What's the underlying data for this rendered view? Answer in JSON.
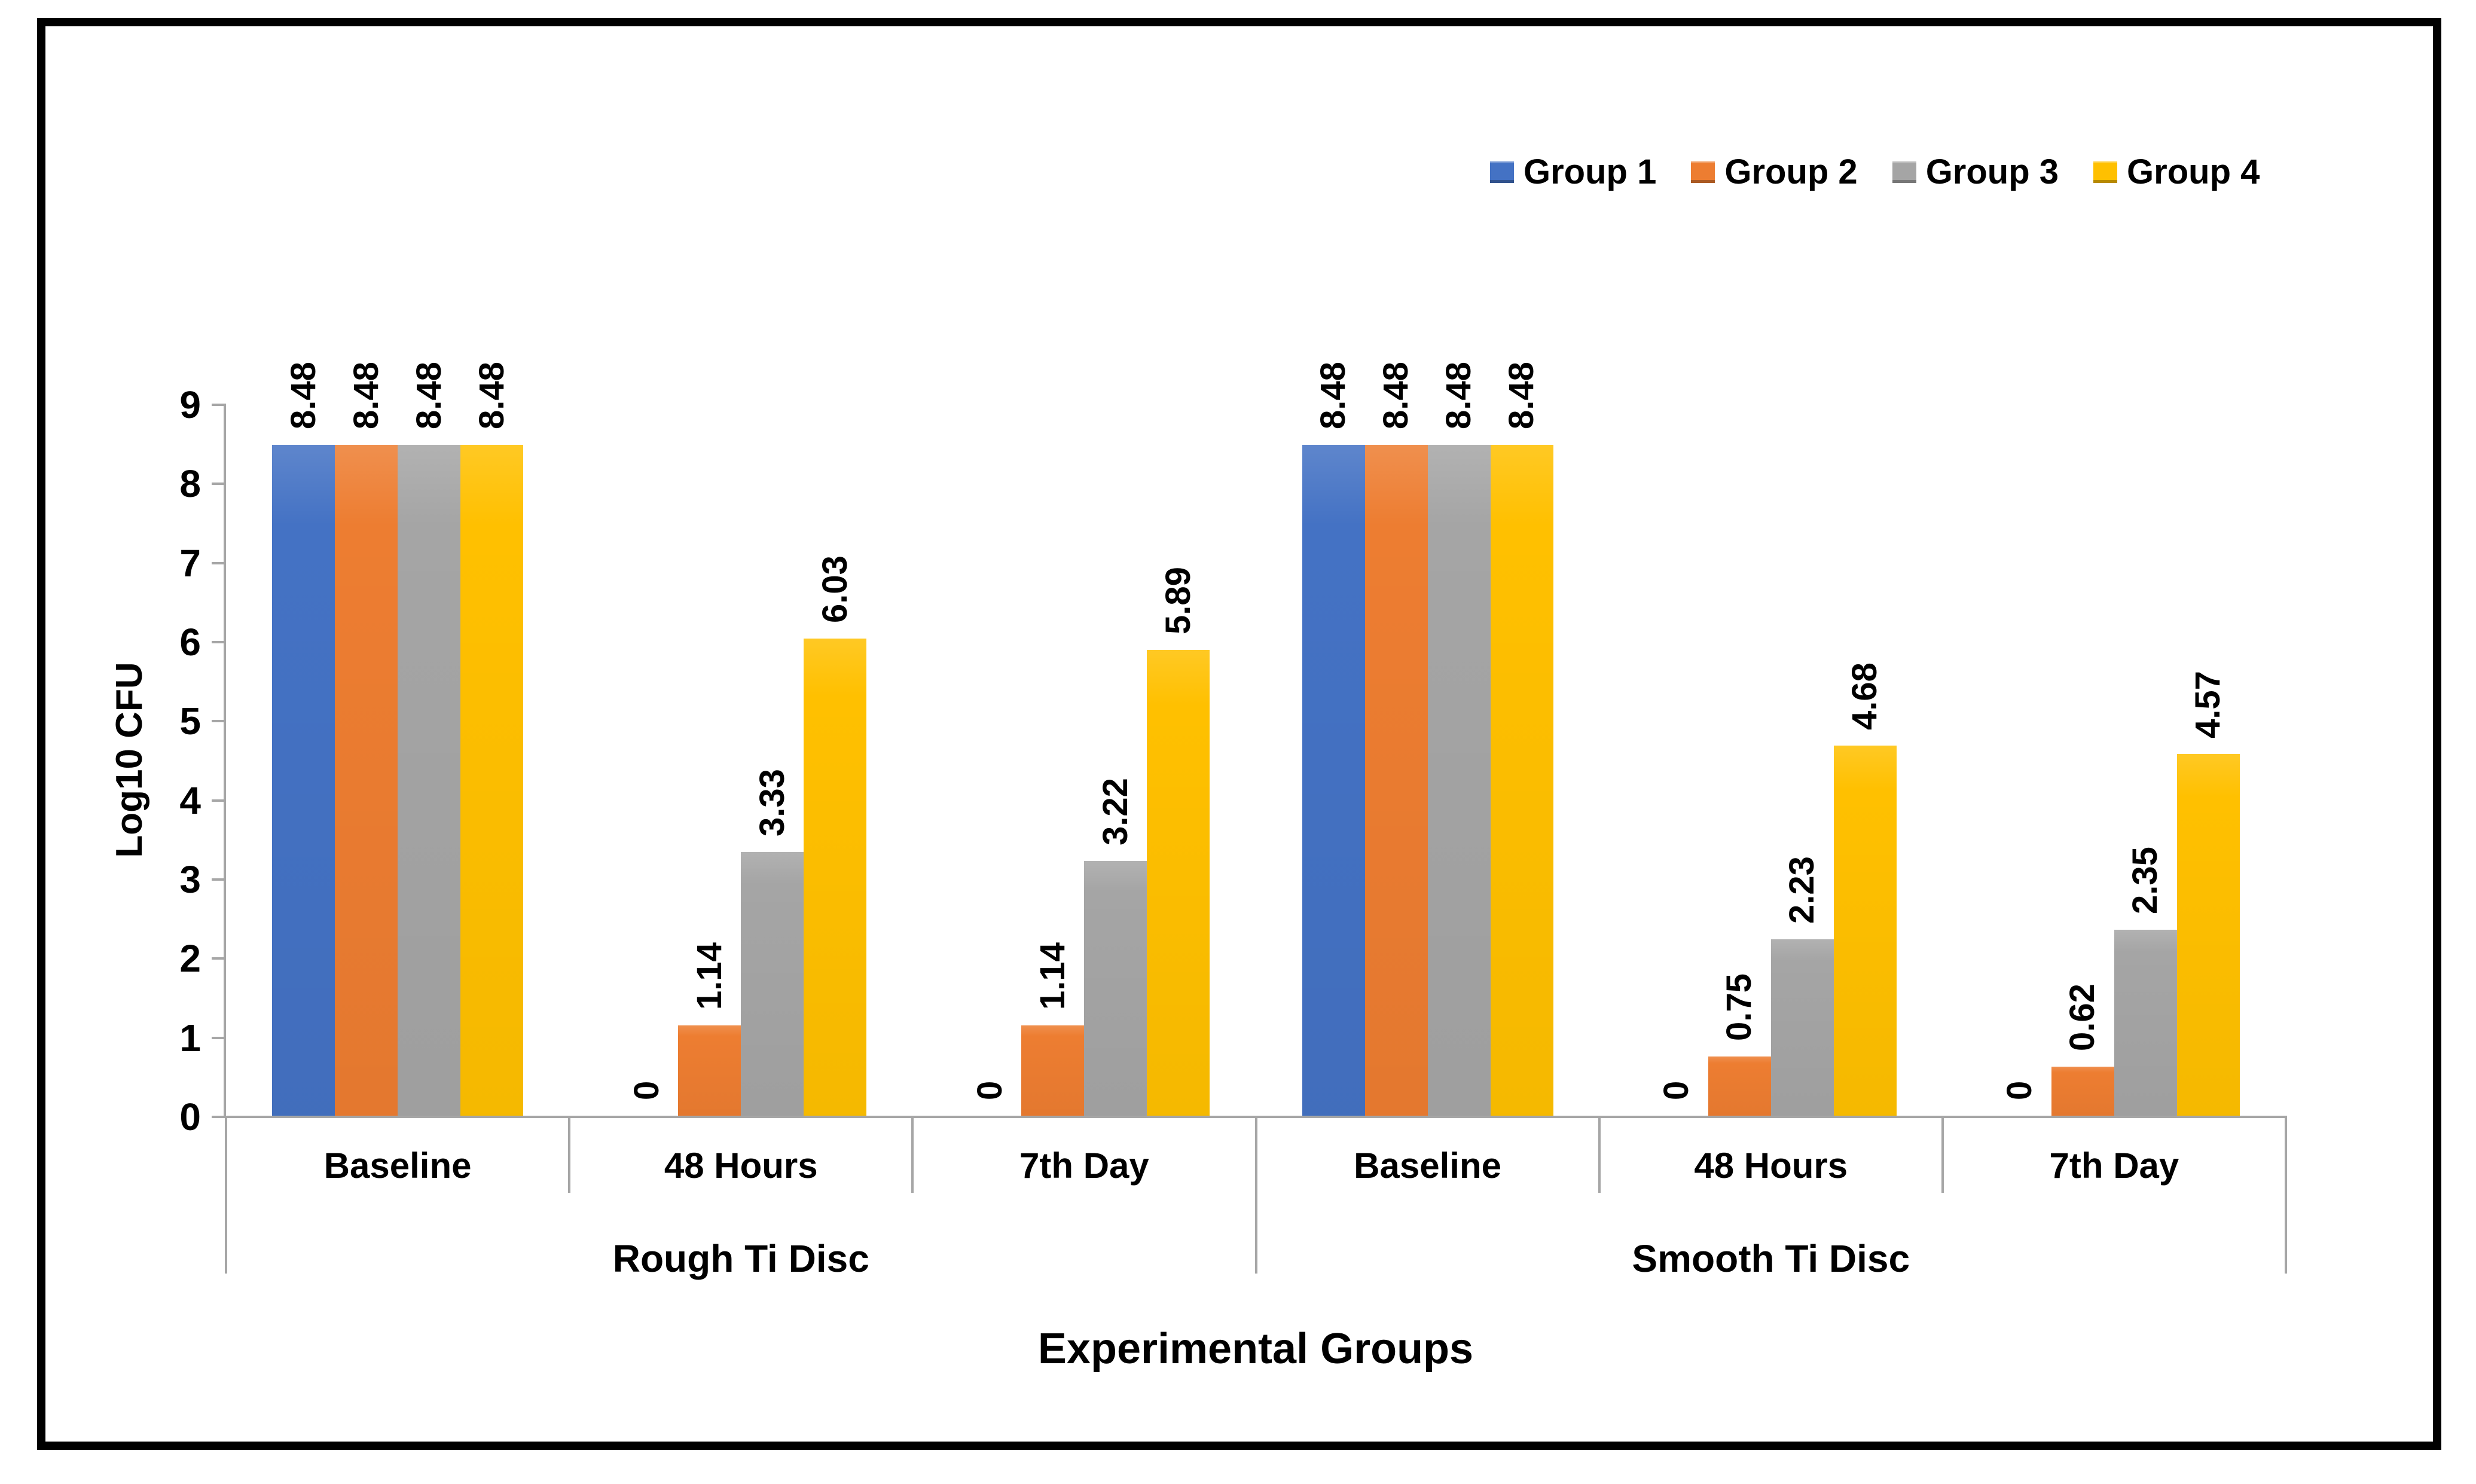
{
  "figure": {
    "background": "#ffffff",
    "border_color": "#000000"
  },
  "legend": {
    "position": "top-right",
    "items": [
      {
        "label": "Group 1",
        "color": "#4472C4"
      },
      {
        "label": "Group 2",
        "color": "#ED7D31"
      },
      {
        "label": "Group 3",
        "color": "#A5A5A5"
      },
      {
        "label": "Group 4",
        "color": "#FFC000"
      }
    ]
  },
  "chart_data": {
    "type": "bar",
    "title": "",
    "xlabel": "Experimental Groups",
    "ylabel": "Log10 CFU",
    "ylim": [
      0,
      9
    ],
    "yticks": [
      0,
      1,
      2,
      3,
      4,
      5,
      6,
      7,
      8,
      9
    ],
    "grid": false,
    "legend_position": "top-right",
    "axis_color": "#A6A6A6",
    "groups": [
      {
        "label": "Rough Ti Disc",
        "categories": [
          "Baseline",
          "48 Hours",
          "7th Day"
        ]
      },
      {
        "label": "Smooth Ti Disc",
        "categories": [
          "Baseline",
          "48 Hours",
          "7th Day"
        ]
      }
    ],
    "categories": [
      "Baseline",
      "48 Hours",
      "7th Day",
      "Baseline",
      "48 Hours",
      "7th Day"
    ],
    "series": [
      {
        "name": "Group 1",
        "color": "#4472C4",
        "values": [
          8.48,
          0,
          0,
          8.48,
          0,
          0
        ],
        "labels": [
          "8.48",
          "0",
          "0",
          "8.48",
          "0",
          "0"
        ]
      },
      {
        "name": "Group 2",
        "color": "#ED7D31",
        "values": [
          8.48,
          1.14,
          1.14,
          8.48,
          0.75,
          0.62
        ],
        "labels": [
          "8.48",
          "1.14",
          "1.14",
          "8.48",
          "0.75",
          "0.62"
        ]
      },
      {
        "name": "Group 3",
        "color": "#A5A5A5",
        "values": [
          8.48,
          3.33,
          3.22,
          8.48,
          2.23,
          2.35
        ],
        "labels": [
          "8.48",
          "3.33",
          "3.22",
          "8.48",
          "2.23",
          "2.35"
        ]
      },
      {
        "name": "Group 4",
        "color": "#FFC000",
        "values": [
          8.48,
          6.03,
          5.89,
          8.48,
          4.68,
          4.57
        ],
        "labels": [
          "8.48",
          "6.03",
          "5.89",
          "8.48",
          "4.68",
          "4.57"
        ]
      }
    ]
  }
}
